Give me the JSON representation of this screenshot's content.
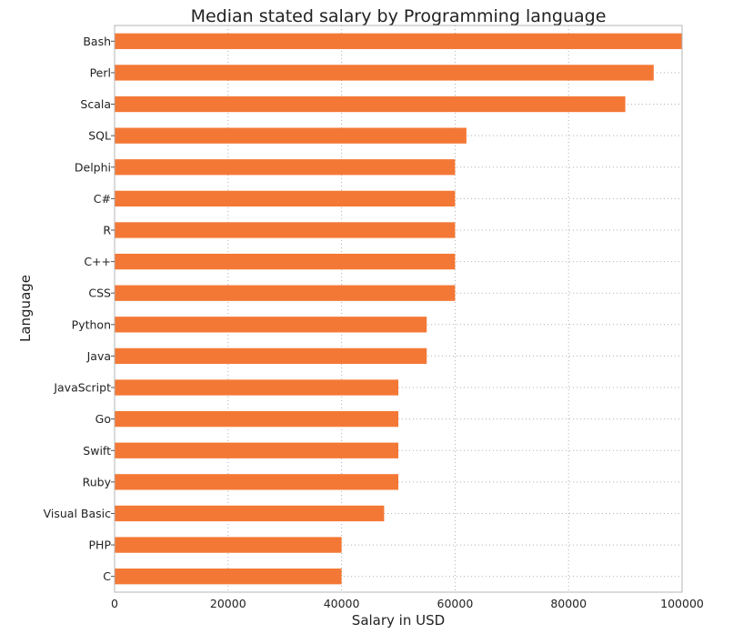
{
  "chart_data": {
    "type": "bar",
    "orientation": "horizontal",
    "title": "Median stated salary by Programming language",
    "xlabel": "Salary in USD",
    "ylabel": "Language",
    "xlim": [
      0,
      100000
    ],
    "xticks": [
      0,
      20000,
      40000,
      60000,
      80000,
      100000
    ],
    "grid": true,
    "categories": [
      "Bash",
      "Perl",
      "Scala",
      "SQL",
      "Delphi",
      "C#",
      "R",
      "C++",
      "CSS",
      "Python",
      "Java",
      "JavaScript",
      "Go",
      "Swift",
      "Ruby",
      "Visual Basic",
      "PHP",
      "C"
    ],
    "values": [
      100000,
      95000,
      90000,
      62000,
      60000,
      60000,
      60000,
      60000,
      60000,
      55000,
      55000,
      50000,
      50000,
      50000,
      50000,
      47500,
      40000,
      40000
    ],
    "bar_color": "#f47835"
  }
}
